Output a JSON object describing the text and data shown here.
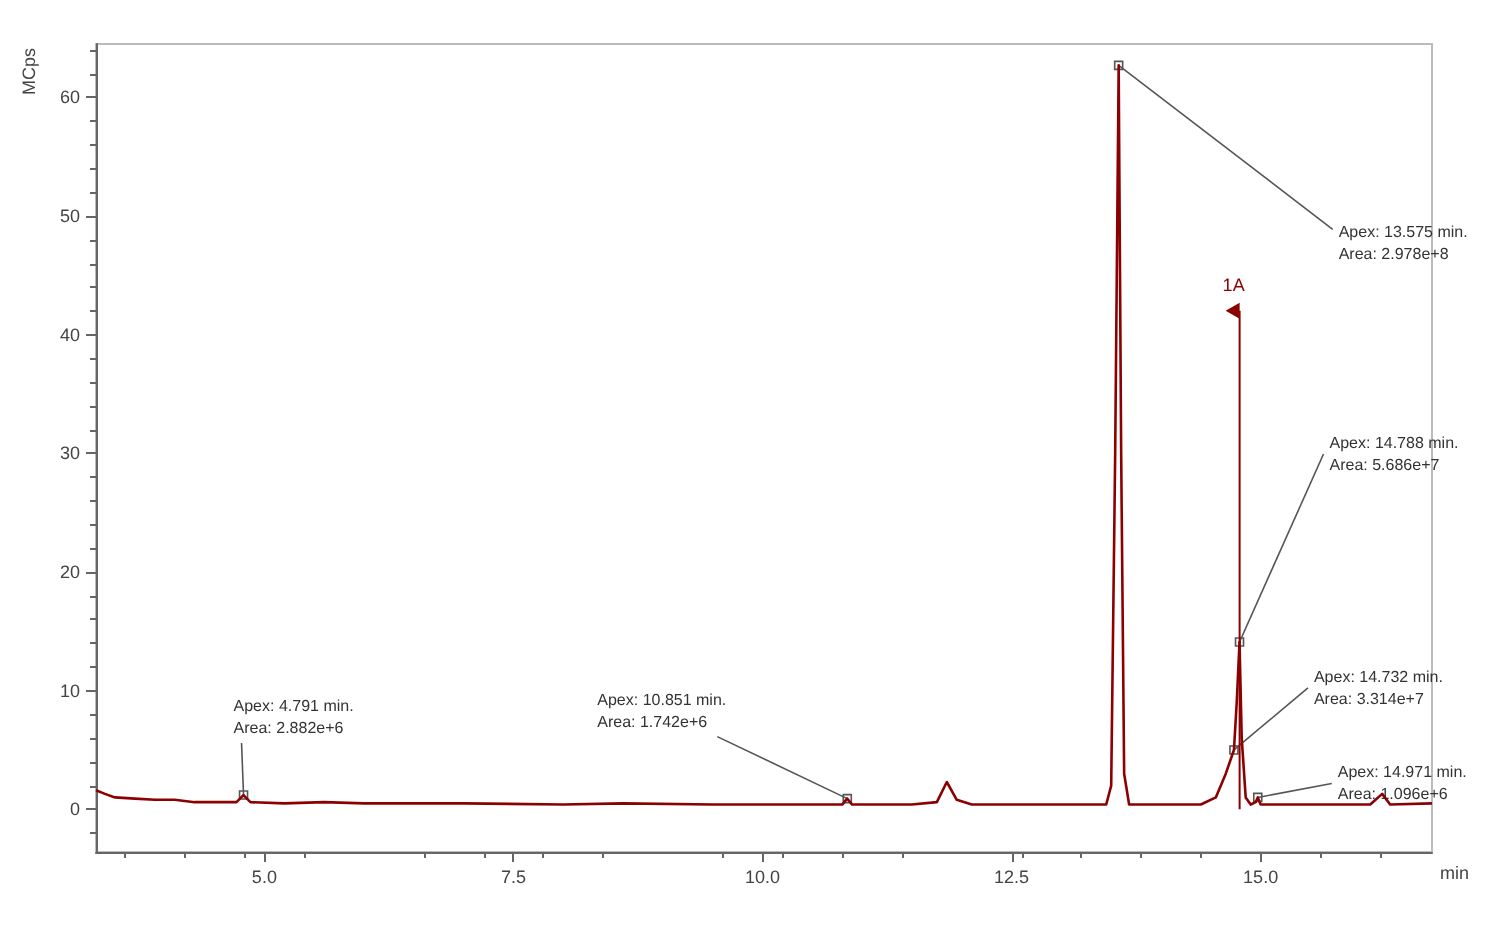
{
  "chart_data": {
    "type": "line",
    "ylabel": "MCps",
    "xlabel": "min",
    "xlim": [
      3.31,
      16.72
    ],
    "ylim": [
      -3.6,
      64.5
    ],
    "xticks": [
      {
        "value": 5,
        "label": "5.0"
      },
      {
        "value": 7.5,
        "label": "7.5"
      },
      {
        "value": 10,
        "label": "10.0"
      },
      {
        "value": 12.5,
        "label": "12.5"
      },
      {
        "value": 15,
        "label": "15.0"
      }
    ],
    "yticks": [
      0,
      10,
      20,
      30,
      40,
      50,
      60
    ],
    "grid": false,
    "marker": "none",
    "line_style": "solid",
    "series": [
      {
        "color": "#8b0000",
        "x": [
          3.31,
          3.4,
          3.5,
          3.7,
          3.9,
          4.1,
          4.3,
          4.6,
          4.72,
          4.79,
          4.86,
          5.2,
          5.6,
          6,
          7,
          8,
          8.6,
          9.5,
          10.5,
          10.8,
          10.85,
          10.9,
          11.5,
          11.75,
          11.85,
          11.95,
          12.1,
          13,
          13.45,
          13.5,
          13.54,
          13.575,
          13.6,
          13.63,
          13.68,
          14.4,
          14.55,
          14.65,
          14.732,
          14.76,
          14.788,
          14.81,
          14.85,
          14.9,
          14.95,
          14.971,
          15,
          16.1,
          16.22,
          16.3,
          16.72
        ],
        "values": [
          1.6,
          1.3,
          1.0,
          0.9,
          0.8,
          0.8,
          0.6,
          0.6,
          0.6,
          1.2,
          0.6,
          0.5,
          0.6,
          0.5,
          0.5,
          0.4,
          0.5,
          0.4,
          0.4,
          0.4,
          0.9,
          0.4,
          0.4,
          0.6,
          2.3,
          0.8,
          0.4,
          0.4,
          0.4,
          2,
          30,
          62.7,
          30,
          3,
          0.4,
          0.4,
          1,
          3,
          5,
          9,
          14.1,
          6,
          1,
          0.4,
          0.6,
          1.0,
          0.4,
          0.4,
          1.3,
          0.4,
          0.5
        ]
      }
    ],
    "annotations": [
      {
        "text": "Apex: 4.791 min.\nArea: 2.882e+6",
        "x": 4.791,
        "y": 1.2
      },
      {
        "text": "Apex: 10.851 min.\nArea: 1.742e+6",
        "x": 10.851,
        "y": 0.9
      },
      {
        "text": "Apex: 13.575 min.\nArea: 2.978e+8",
        "x": 13.575,
        "y": 62.7
      },
      {
        "text": "Apex: 14.788 min.\nArea: 5.686e+7",
        "x": 14.788,
        "y": 14.1
      },
      {
        "text": "Apex: 14.732 min.\nArea: 3.314e+7",
        "x": 14.732,
        "y": 5
      },
      {
        "text": "Apex: 14.971 min.\nArea: 1.096e+6",
        "x": 14.971,
        "y": 1.0
      },
      "1A"
    ]
  }
}
